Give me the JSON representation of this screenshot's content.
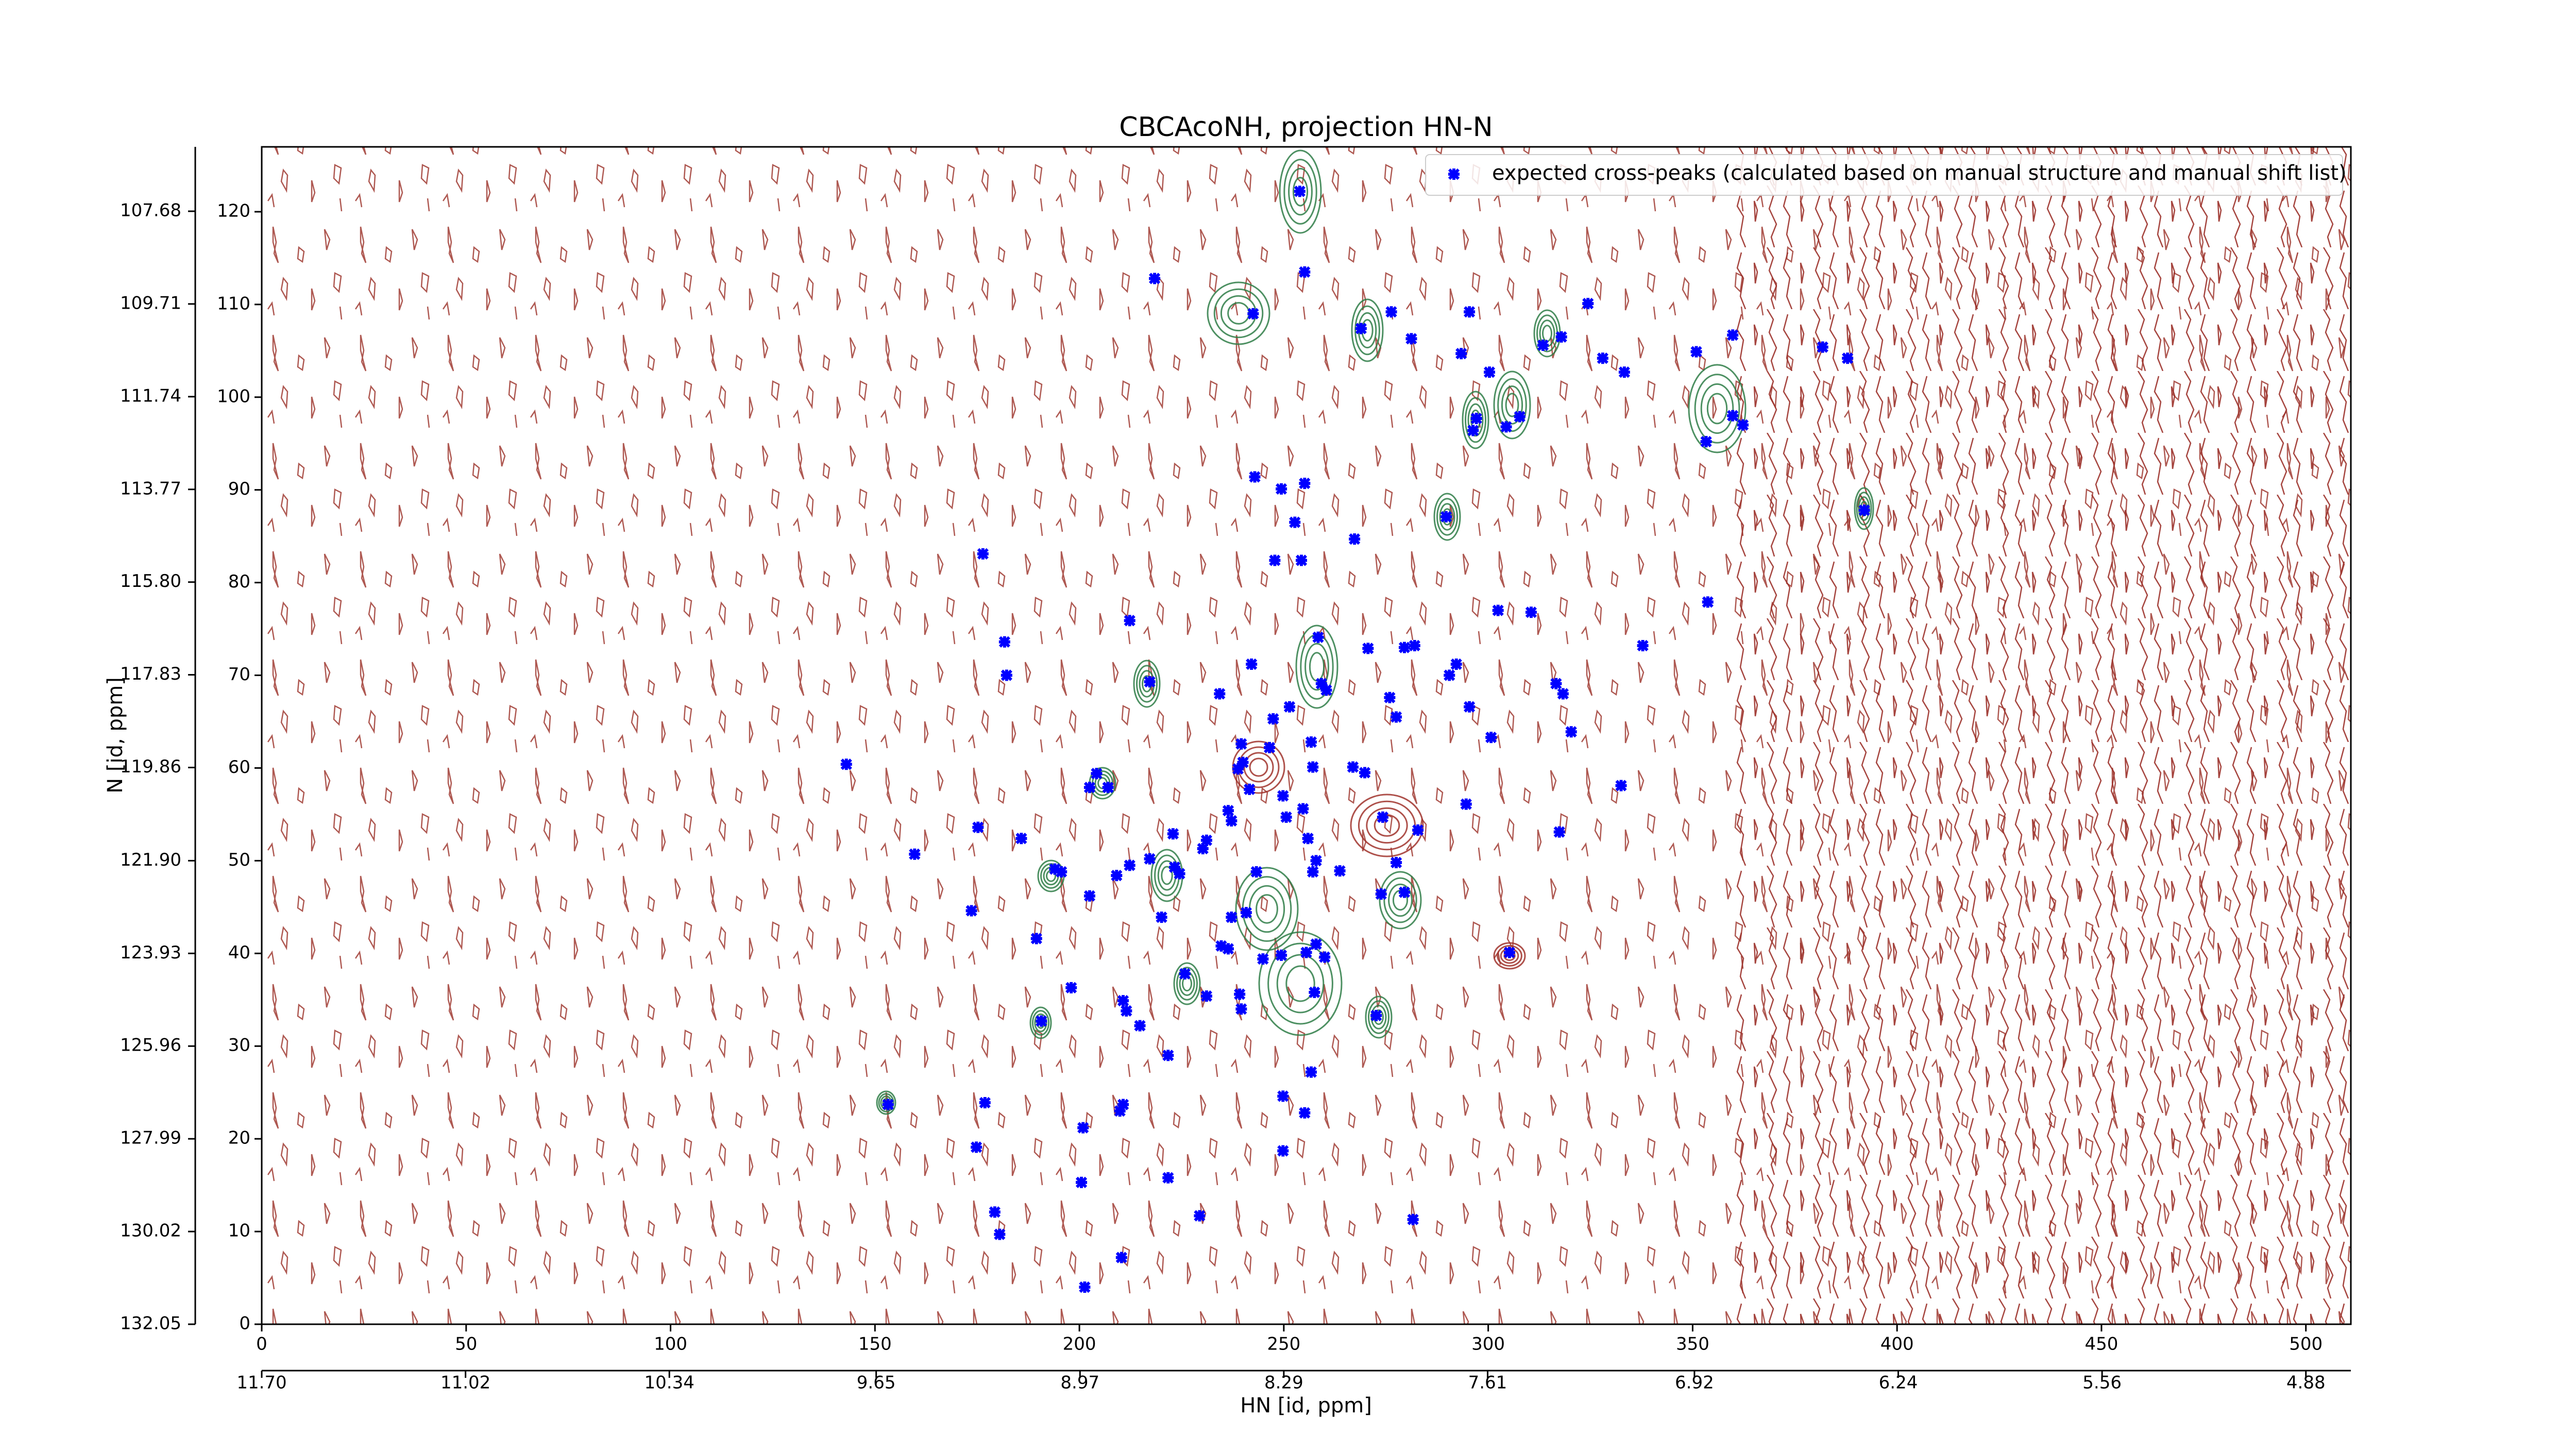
{
  "chart_data": {
    "type": "scatter",
    "title": "CBCAcoNH, projection HN-N",
    "xlabel": "HN [id, ppm]",
    "ylabel": "N [id, ppm]",
    "legend": "upper right",
    "xlim": [
      0,
      511
    ],
    "ylim": [
      0,
      127
    ],
    "xticks": [
      0,
      50,
      100,
      150,
      200,
      250,
      300,
      350,
      400,
      450,
      500
    ],
    "yticks": [
      0,
      10,
      20,
      30,
      40,
      50,
      60,
      70,
      80,
      90,
      100,
      110,
      120
    ],
    "x2lim": [
      11.7,
      4.73
    ],
    "x2ticks": [
      {
        "value": 11.7,
        "label": "11.70"
      },
      11.02,
      10.34,
      9.65,
      8.97,
      8.29,
      7.61,
      6.92,
      6.24,
      5.56,
      4.88
    ],
    "y2lim": [
      132.05,
      106.27
    ],
    "y2ticks": [
      132.05,
      130.02,
      127.99,
      125.96,
      123.93,
      {
        "value": 121.9,
        "label": "121.90"
      },
      119.86,
      117.83,
      {
        "value": 115.8,
        "label": "115.80"
      },
      113.77,
      111.74,
      109.71,
      107.68
    ],
    "series": [
      {
        "name": "expected cross-peaks (calculated based on manual structure and manual shift list)",
        "color": "#0000ff",
        "x": [
          253.9,
          218.4,
          242.5,
          255.1,
          276.3,
          268.9,
          281.2,
          295.4,
          293.4,
          300.3,
          297.1,
          296.3,
          304.4,
          307.7,
          313.4,
          317.9,
          324.4,
          328.0,
          333.3,
          350.9,
          359.8,
          353.3,
          359.8,
          362.3,
          381.8,
          387.9,
          392.0,
          289.7,
          242.9,
          249.4,
          255.1,
          252.7,
          267.3,
          247.8,
          254.3,
          176.4,
          353.7,
          302.4,
          310.5,
          337.8,
          212.3,
          181.7,
          182.2,
          217.2,
          242.1,
          258.4,
          259.2,
          260.4,
          270.6,
          279.5,
          282.0,
          292.2,
          290.5,
          275.9,
          277.5,
          295.4,
          300.7,
          316.6,
          318.3,
          320.3,
          234.3,
          251.4,
          247.4,
          239.6,
          246.5,
          256.7,
          257.1,
          266.9,
          269.8,
          240.0,
          238.8,
          241.6,
          249.8,
          254.7,
          274.2,
          282.8,
          294.6,
          332.5,
          143.0,
          204.2,
          207.0,
          202.5,
          159.7,
          175.2,
          185.8,
          194.0,
          195.6,
          202.5,
          209.1,
          212.3,
          217.2,
          222.9,
          223.3,
          224.5,
          230.2,
          231.1,
          236.4,
          237.2,
          243.3,
          250.6,
          255.9,
          257.9,
          257.1,
          263.7,
          277.5,
          279.5,
          273.8,
          317.4,
          173.6,
          220.1,
          237.2,
          236.4,
          234.7,
          240.8,
          244.9,
          249.4,
          255.5,
          257.9,
          260.0,
          305.2,
          189.5,
          198.0,
          190.7,
          225.8,
          210.7,
          214.8,
          211.5,
          231.1,
          239.6,
          239.2,
          257.5,
          272.6,
          221.7,
          153.2,
          176.9,
          174.8,
          200.9,
          209.9,
          210.7,
          200.5,
          179.3,
          180.5,
          221.7,
          229.4,
          249.8,
          255.1,
          249.8,
          256.7,
          281.6,
          210.3,
          201.3
        ],
        "y": [
          122.2,
          112.8,
          109.0,
          113.5,
          109.2,
          107.4,
          106.3,
          109.2,
          104.7,
          102.7,
          97.7,
          96.4,
          96.8,
          97.9,
          105.6,
          106.5,
          110.1,
          104.2,
          102.7,
          104.9,
          106.7,
          95.2,
          98.0,
          97.0,
          105.4,
          104.2,
          87.8,
          87.1,
          91.4,
          90.1,
          90.7,
          86.5,
          84.7,
          82.4,
          82.4,
          83.1,
          77.9,
          77.0,
          76.8,
          73.2,
          75.9,
          73.6,
          70.0,
          69.3,
          71.2,
          74.1,
          69.1,
          68.4,
          72.9,
          73.0,
          73.2,
          71.2,
          70.0,
          67.6,
          65.5,
          66.6,
          63.3,
          69.1,
          68.0,
          63.9,
          68.0,
          66.6,
          65.3,
          62.6,
          62.2,
          62.8,
          60.1,
          60.1,
          59.5,
          60.6,
          59.9,
          57.7,
          57.0,
          55.6,
          54.7,
          53.3,
          56.1,
          58.1,
          60.4,
          59.4,
          57.9,
          57.9,
          50.7,
          53.6,
          52.4,
          49.1,
          48.8,
          46.2,
          48.4,
          49.5,
          50.2,
          52.9,
          49.3,
          48.6,
          51.3,
          52.2,
          55.4,
          54.3,
          48.8,
          54.7,
          52.4,
          50.0,
          48.8,
          48.9,
          49.8,
          46.6,
          46.4,
          53.1,
          44.6,
          43.9,
          43.9,
          40.5,
          40.8,
          44.4,
          39.4,
          39.8,
          40.1,
          41.0,
          39.6,
          40.1,
          41.6,
          36.3,
          32.7,
          37.8,
          34.9,
          32.2,
          33.8,
          35.4,
          34.0,
          35.6,
          35.8,
          33.3,
          29.0,
          23.7,
          23.9,
          19.1,
          21.2,
          23.0,
          23.7,
          15.3,
          12.1,
          9.7,
          15.8,
          11.7,
          24.6,
          22.8,
          18.7,
          27.2,
          11.3,
          7.2,
          4.0
        ]
      }
    ]
  }
}
